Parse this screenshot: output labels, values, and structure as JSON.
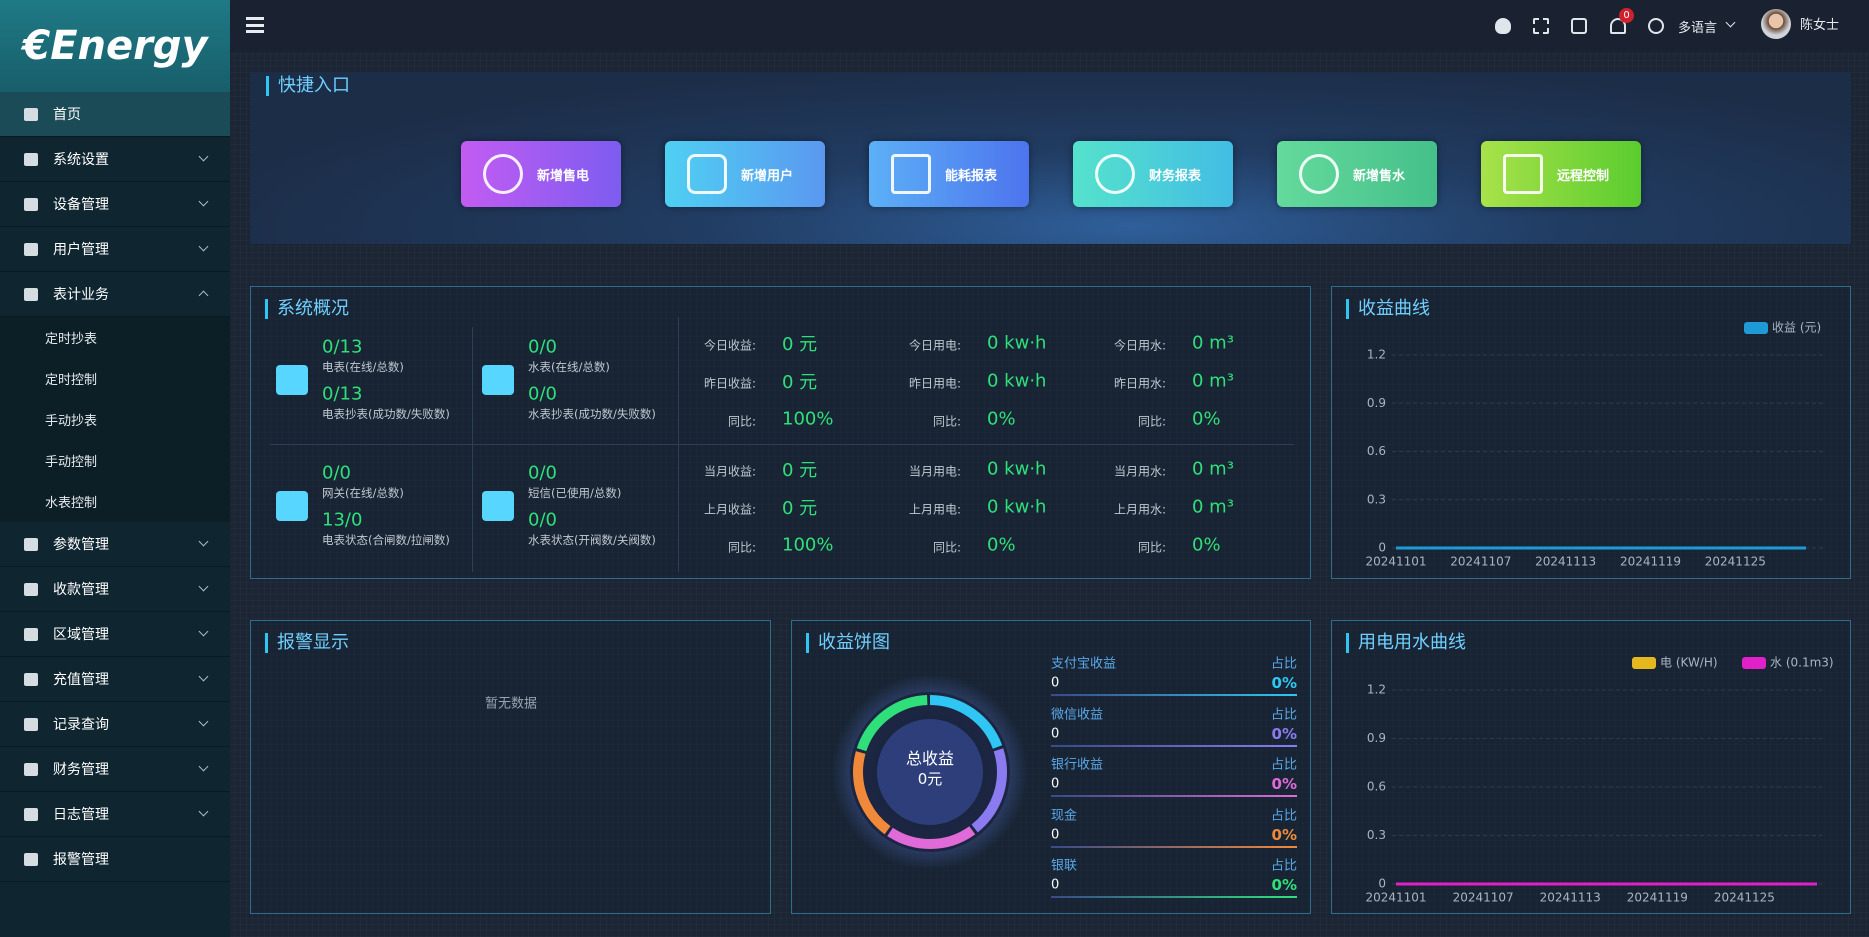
{
  "sidebar": {
    "logo": "€Energy",
    "menu": [
      {
        "label": "首页"
      },
      {
        "label": "系统设置"
      },
      {
        "label": "设备管理"
      },
      {
        "label": "用户管理"
      },
      {
        "label": "表计业务",
        "children": [
          "定时抄表",
          "定时控制",
          "手动抄表",
          "手动控制",
          "水表控制"
        ]
      },
      {
        "label": "参数管理"
      },
      {
        "label": "收款管理"
      },
      {
        "label": "区域管理"
      },
      {
        "label": "充值管理"
      },
      {
        "label": "记录查询"
      },
      {
        "label": "财务管理"
      },
      {
        "label": "日志管理"
      },
      {
        "label": "报警管理"
      }
    ]
  },
  "header": {
    "badge": "0",
    "language": "多语言",
    "user": "陈女士"
  },
  "quick_entry": {
    "title": "快捷入口",
    "buttons": [
      "新增售电",
      "新增用户",
      "能耗报表",
      "财务报表",
      "新增售水",
      "远程控制"
    ]
  },
  "overview": {
    "title": "系统概况",
    "meters": [
      [
        {
          "value": "0/13",
          "label": "电表(在线/总数)"
        },
        {
          "value": "0/13",
          "label": "电表抄表(成功数/失败数)"
        }
      ],
      [
        {
          "value": "0/0",
          "label": "水表(在线/总数)"
        },
        {
          "value": "0/0",
          "label": "水表抄表(成功数/失败数)"
        }
      ],
      [
        {
          "value": "0/0",
          "label": "网关(在线/总数)"
        },
        {
          "value": "13/0",
          "label": "电表状态(合闸数/拉闸数)"
        }
      ],
      [
        {
          "value": "0/0",
          "label": "短信(已使用/总数)"
        },
        {
          "value": "0/0",
          "label": "水表状态(开阀数/关阀数)"
        }
      ]
    ],
    "stats": [
      [
        [
          {
            "label": "今日收益:",
            "value": "0 元"
          },
          {
            "label": "昨日收益:",
            "value": "0 元"
          },
          {
            "label": "同比:",
            "value": "100%"
          }
        ],
        [
          {
            "label": "今日用电:",
            "value": "0 kw·h"
          },
          {
            "label": "昨日用电:",
            "value": "0 kw·h"
          },
          {
            "label": "同比:",
            "value": "0%"
          }
        ],
        [
          {
            "label": "今日用水:",
            "value": "0 m³"
          },
          {
            "label": "昨日用水:",
            "value": "0 m³"
          },
          {
            "label": "同比:",
            "value": "0%"
          }
        ]
      ],
      [
        [
          {
            "label": "当月收益:",
            "value": "0 元"
          },
          {
            "label": "上月收益:",
            "value": "0 元"
          },
          {
            "label": "同比:",
            "value": "100%"
          }
        ],
        [
          {
            "label": "当月用电:",
            "value": "0 kw·h"
          },
          {
            "label": "上月用电:",
            "value": "0 kw·h"
          },
          {
            "label": "同比:",
            "value": "0%"
          }
        ],
        [
          {
            "label": "当月用水:",
            "value": "0 m³"
          },
          {
            "label": "上月用水:",
            "value": "0 m³"
          },
          {
            "label": "同比:",
            "value": "0%"
          }
        ]
      ]
    ]
  },
  "alarm": {
    "title": "报警显示",
    "empty": "暂无数据"
  },
  "income_pie": {
    "title": "收益饼图",
    "center_title": "总收益",
    "center_value": "0元",
    "items": [
      {
        "name": "支付宝收益",
        "value": "0",
        "share_label": "占比",
        "share": "0%",
        "color": "#2fc6f3"
      },
      {
        "name": "微信收益",
        "value": "0",
        "share_label": "占比",
        "share": "0%",
        "color": "#8a7cf0"
      },
      {
        "name": "银行收益",
        "value": "0",
        "share_label": "占比",
        "share": "0%",
        "color": "#e06ad8"
      },
      {
        "name": "现金",
        "value": "0",
        "share_label": "占比",
        "share": "0%",
        "color": "#f08a3a"
      },
      {
        "name": "银联",
        "value": "0",
        "share_label": "占比",
        "share": "0%",
        "color": "#2fe07a"
      }
    ]
  },
  "chart_data": [
    {
      "type": "line",
      "title": "收益曲线",
      "categories": [
        "20241101",
        null,
        null,
        null,
        null,
        null,
        "20241107",
        null,
        null,
        null,
        null,
        null,
        "20241113",
        null,
        null,
        null,
        null,
        null,
        "20241119",
        null,
        null,
        null,
        null,
        null,
        "20241125",
        null,
        null,
        null,
        null,
        null
      ],
      "series": [
        {
          "name": "收益 (元)",
          "color": "#1e9bd7",
          "values": [
            0,
            0,
            0,
            0,
            0,
            0,
            0,
            0,
            0,
            0,
            0,
            0,
            0,
            0,
            0,
            0,
            0,
            0,
            0,
            0,
            0,
            0,
            0,
            0,
            0,
            0,
            0,
            0,
            0,
            0
          ]
        }
      ],
      "ylim": [
        0,
        1.2
      ],
      "yticks": [
        0,
        0.3,
        0.6,
        0.9,
        1.2
      ],
      "grid": true,
      "legend": "top-right"
    },
    {
      "type": "line",
      "title": "用电用水曲线",
      "categories": [
        "20241101",
        null,
        null,
        null,
        null,
        null,
        "20241107",
        null,
        null,
        null,
        null,
        null,
        "20241113",
        null,
        null,
        null,
        null,
        null,
        "20241119",
        null,
        null,
        null,
        null,
        null,
        "20241125",
        null,
        null,
        null,
        null,
        null
      ],
      "series": [
        {
          "name": "电 (KW/H)",
          "color": "#e6b820",
          "values": [
            0,
            0,
            0,
            0,
            0,
            0,
            0,
            0,
            0,
            0,
            0,
            0,
            0,
            0,
            0,
            0,
            0,
            0,
            0,
            0,
            0,
            0,
            0,
            0,
            0,
            0,
            0,
            0,
            0,
            0
          ]
        },
        {
          "name": "水 (0.1m3)",
          "color": "#e020c8",
          "values": [
            0,
            0,
            0,
            0,
            0,
            0,
            0,
            0,
            0,
            0,
            0,
            0,
            0,
            0,
            0,
            0,
            0,
            0,
            0,
            0,
            0,
            0,
            0,
            0,
            0,
            0,
            0,
            0,
            0,
            0
          ]
        }
      ],
      "ylim": [
        0,
        1.2
      ],
      "yticks": [
        0,
        0.3,
        0.6,
        0.9,
        1.2
      ],
      "grid": true,
      "legend": "top-right"
    }
  ]
}
